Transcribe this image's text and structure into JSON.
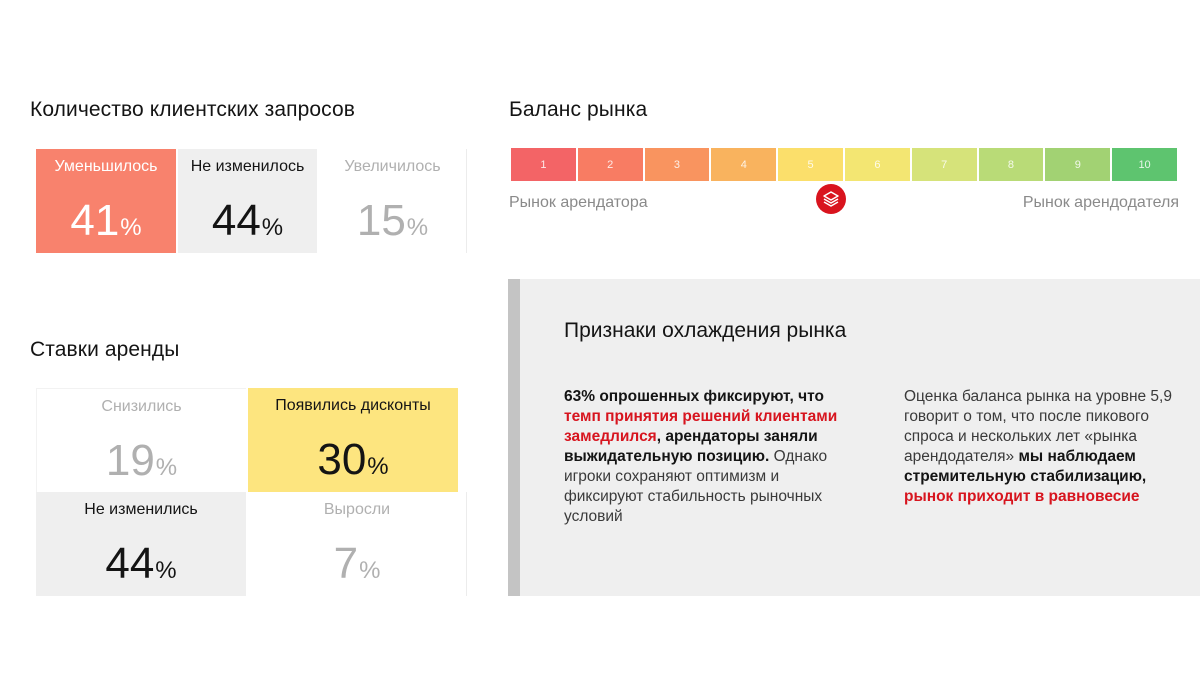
{
  "client_requests": {
    "title": "Количество клиентских запросов",
    "cells": [
      {
        "label": "Уменьшилось",
        "value": "41",
        "unit": "%",
        "bg": "#f8826d",
        "fg": "#ffffff"
      },
      {
        "label": "Не изменилось",
        "value": "44",
        "unit": "%",
        "bg": "#efefef",
        "fg": "#141414"
      },
      {
        "label": "Увеличилось",
        "value": "15",
        "unit": "%",
        "bg": "#ffffff",
        "fg": "#b0b0b0"
      }
    ]
  },
  "rent_rates": {
    "title": "Ставки аренды",
    "cells": [
      {
        "label": "Снизились",
        "value": "19",
        "unit": "%",
        "bg": "#ffffff",
        "fg": "#b0b0b0"
      },
      {
        "label": "Появились дисконты",
        "value": "30",
        "unit": "%",
        "bg": "#fde57f",
        "fg": "#141414"
      },
      {
        "label": "Не изменились",
        "value": "44",
        "unit": "%",
        "bg": "#efefef",
        "fg": "#141414"
      },
      {
        "label": "Выросли",
        "value": "7",
        "unit": "%",
        "bg": "#ffffff",
        "fg": "#b0b0b0"
      }
    ]
  },
  "market_balance": {
    "title": "Баланс рынка",
    "scale": [
      {
        "label": "1",
        "color": "#f36466"
      },
      {
        "label": "2",
        "color": "#f87c63"
      },
      {
        "label": "3",
        "color": "#f9945f"
      },
      {
        "label": "4",
        "color": "#f9b35e"
      },
      {
        "label": "5",
        "color": "#fbdf6b"
      },
      {
        "label": "6",
        "color": "#f3e672"
      },
      {
        "label": "7",
        "color": "#d6e37a"
      },
      {
        "label": "8",
        "color": "#b9db77"
      },
      {
        "label": "9",
        "color": "#a2d273"
      },
      {
        "label": "10",
        "color": "#5ec46f"
      }
    ],
    "left_caption": "Рынок арендатора",
    "right_caption": "Рынок арендодателя",
    "marker_value": 5.9,
    "marker_icon": "layers-icon",
    "marker_color": "#d9141e"
  },
  "cooling_signs": {
    "title": "Признаки охлаждения рынка",
    "col1": {
      "p1": "63% опрошенных фиксируют, что ",
      "p2": "темп принятия решений клиентами замедлился",
      "p3": ", арендаторы заняли выжидательную позицию.",
      "p4": " Однако игроки сохраняют оптимизм и фиксируют стабильность рыночных условий"
    },
    "col2": {
      "p1": "Оценка баланса рынка на уровне 5,9 говорит о том, что после пикового спроса и нескольких лет «рынка арендодателя» ",
      "p2": "мы наблюдаем стремительную стабилизацию,",
      "p3": " ",
      "p4": "рынок приходит в равновесие"
    },
    "accent_color": "#d7141e"
  }
}
